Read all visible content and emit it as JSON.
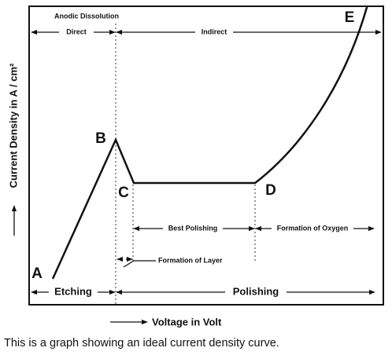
{
  "diagram": {
    "header": "Anodic Dissolution",
    "direct": "Direct",
    "indirect": "Indirect",
    "points": {
      "a": "A",
      "b": "B",
      "c": "C",
      "d": "D",
      "e": "E"
    },
    "y_axis_label": "Current Density in A / cm²",
    "best_polishing": "Best Polishing",
    "formation_of_oxygen": "Formation of Oxygen",
    "formation_of_layer": "Formation of Layer",
    "etching": "Etching",
    "polishing": "Polishing",
    "x_axis_label": "Voltage in Volt"
  },
  "caption": "This is a graph showing an ideal current density curve."
}
